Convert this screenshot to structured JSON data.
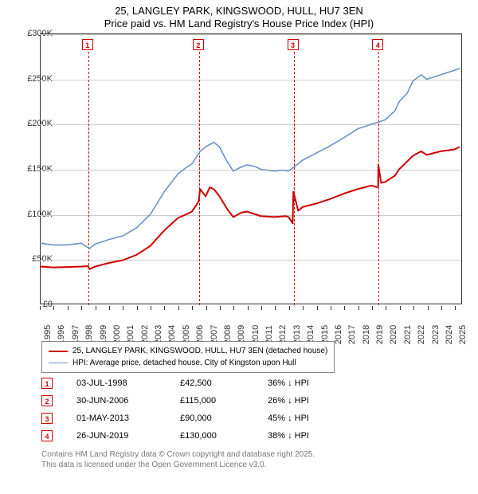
{
  "title": {
    "line1": "25, LANGLEY PARK, KINGSWOOD, HULL, HU7 3EN",
    "line2": "Price paid vs. HM Land Registry's House Price Index (HPI)",
    "fontsize": 13,
    "color": "#000000"
  },
  "chart": {
    "background_color": "#ffffff",
    "grid_color": "#cccccc",
    "axis_color": "#333333",
    "y": {
      "min": 0,
      "max": 300000,
      "step": 50000,
      "labels": [
        "£0",
        "£50K",
        "£100K",
        "£150K",
        "£200K",
        "£250K",
        "£300K"
      ],
      "label_fontsize": 11
    },
    "x": {
      "min": 1995,
      "max": 2025.5,
      "labels": [
        "1995",
        "1996",
        "1997",
        "1998",
        "1999",
        "2000",
        "2001",
        "2002",
        "2003",
        "2004",
        "2005",
        "2006",
        "2007",
        "2008",
        "2009",
        "2010",
        "2011",
        "2012",
        "2013",
        "2014",
        "2015",
        "2016",
        "2017",
        "2018",
        "2019",
        "2020",
        "2021",
        "2022",
        "2023",
        "2024",
        "2025"
      ],
      "label_fontsize": 11
    },
    "series": [
      {
        "name": "hpi",
        "color": "#6b93c7",
        "width": 1.6,
        "points": [
          [
            1995,
            68000
          ],
          [
            1996,
            66000
          ],
          [
            1997,
            66000
          ],
          [
            1998,
            68000
          ],
          [
            1998.6,
            62000
          ],
          [
            1999,
            67000
          ],
          [
            2000,
            72000
          ],
          [
            2001,
            76000
          ],
          [
            2002,
            85000
          ],
          [
            2003,
            100000
          ],
          [
            2004,
            125000
          ],
          [
            2005,
            145000
          ],
          [
            2005.5,
            151000
          ],
          [
            2006,
            156000
          ],
          [
            2006.6,
            170000
          ],
          [
            2007,
            175000
          ],
          [
            2007.6,
            180000
          ],
          [
            2008,
            175000
          ],
          [
            2008.5,
            160000
          ],
          [
            2009,
            148000
          ],
          [
            2009.5,
            152000
          ],
          [
            2010,
            155000
          ],
          [
            2010.6,
            153000
          ],
          [
            2011,
            150000
          ],
          [
            2012,
            148000
          ],
          [
            2012.6,
            149000
          ],
          [
            2013,
            148000
          ],
          [
            2013.6,
            155000
          ],
          [
            2014,
            160000
          ],
          [
            2015,
            168000
          ],
          [
            2016,
            176000
          ],
          [
            2017,
            185000
          ],
          [
            2018,
            195000
          ],
          [
            2019,
            200000
          ],
          [
            2019.6,
            203000
          ],
          [
            2020,
            205000
          ],
          [
            2020.7,
            215000
          ],
          [
            2021,
            225000
          ],
          [
            2021.6,
            235000
          ],
          [
            2022,
            248000
          ],
          [
            2022.6,
            255000
          ],
          [
            2023,
            250000
          ],
          [
            2023.6,
            253000
          ],
          [
            2024,
            255000
          ],
          [
            2024.6,
            258000
          ],
          [
            2025,
            260000
          ],
          [
            2025.4,
            262000
          ]
        ]
      },
      {
        "name": "price_paid",
        "color": "#cc0000",
        "width": 2,
        "points": [
          [
            1995,
            42000
          ],
          [
            1996,
            41000
          ],
          [
            1997,
            41500
          ],
          [
            1998,
            42000
          ],
          [
            1998.5,
            42500
          ],
          [
            1998.6,
            39000
          ],
          [
            1999,
            42000
          ],
          [
            2000,
            46000
          ],
          [
            2001,
            49000
          ],
          [
            2002,
            55000
          ],
          [
            2003,
            65000
          ],
          [
            2004,
            82000
          ],
          [
            2005,
            96000
          ],
          [
            2005.6,
            100000
          ],
          [
            2006,
            103000
          ],
          [
            2006.4,
            112000
          ],
          [
            2006.5,
            115000
          ],
          [
            2006.6,
            128000
          ],
          [
            2007,
            120000
          ],
          [
            2007.3,
            130000
          ],
          [
            2007.6,
            128000
          ],
          [
            2008,
            120000
          ],
          [
            2008.6,
            105000
          ],
          [
            2009,
            97000
          ],
          [
            2009.6,
            102000
          ],
          [
            2010,
            103000
          ],
          [
            2011,
            98000
          ],
          [
            2012,
            97000
          ],
          [
            2012.8,
            98000
          ],
          [
            2013,
            97000
          ],
          [
            2013.3,
            90000
          ],
          [
            2013.35,
            125000
          ],
          [
            2013.7,
            104000
          ],
          [
            2014,
            108000
          ],
          [
            2015,
            112000
          ],
          [
            2016,
            117000
          ],
          [
            2017,
            123000
          ],
          [
            2018,
            128000
          ],
          [
            2019,
            132000
          ],
          [
            2019.4,
            130000
          ],
          [
            2019.48,
            131000
          ],
          [
            2019.5,
            155000
          ],
          [
            2019.7,
            135000
          ],
          [
            2020,
            136000
          ],
          [
            2020.7,
            143000
          ],
          [
            2021,
            150000
          ],
          [
            2022,
            165000
          ],
          [
            2022.6,
            170000
          ],
          [
            2023,
            166000
          ],
          [
            2024,
            170000
          ],
          [
            2025,
            172000
          ],
          [
            2025.4,
            175000
          ]
        ]
      }
    ],
    "markers": [
      {
        "n": "1",
        "year": 1998.5,
        "color": "#cc0000"
      },
      {
        "n": "2",
        "year": 2006.5,
        "color": "#cc0000"
      },
      {
        "n": "3",
        "year": 2013.33,
        "color": "#cc0000"
      },
      {
        "n": "4",
        "year": 2019.48,
        "color": "#cc0000"
      }
    ]
  },
  "legend": {
    "items": [
      {
        "color": "#cc0000",
        "width": 2,
        "label": "25, LANGLEY PARK, KINGSWOOD, HULL, HU7 3EN (detached house)"
      },
      {
        "color": "#6b93c7",
        "width": 1.6,
        "label": "HPI: Average price, detached house, City of Kingston upon Hull"
      }
    ],
    "fontsize": 10
  },
  "table": {
    "rows": [
      {
        "n": "1",
        "color": "#cc0000",
        "date": "03-JUL-1998",
        "price": "£42,500",
        "diff": "36% ↓ HPI"
      },
      {
        "n": "2",
        "color": "#cc0000",
        "date": "30-JUN-2006",
        "price": "£115,000",
        "diff": "26% ↓ HPI"
      },
      {
        "n": "3",
        "color": "#cc0000",
        "date": "01-MAY-2013",
        "price": "£90,000",
        "diff": "45% ↓ HPI"
      },
      {
        "n": "4",
        "color": "#cc0000",
        "date": "26-JUN-2019",
        "price": "£130,000",
        "diff": "38% ↓ HPI"
      }
    ],
    "fontsize": 11
  },
  "footer": {
    "line1": "Contains HM Land Registry data © Crown copyright and database right 2025.",
    "line2": "This data is licensed under the Open Government Licence v3.0.",
    "color": "#777777",
    "fontsize": 10
  }
}
